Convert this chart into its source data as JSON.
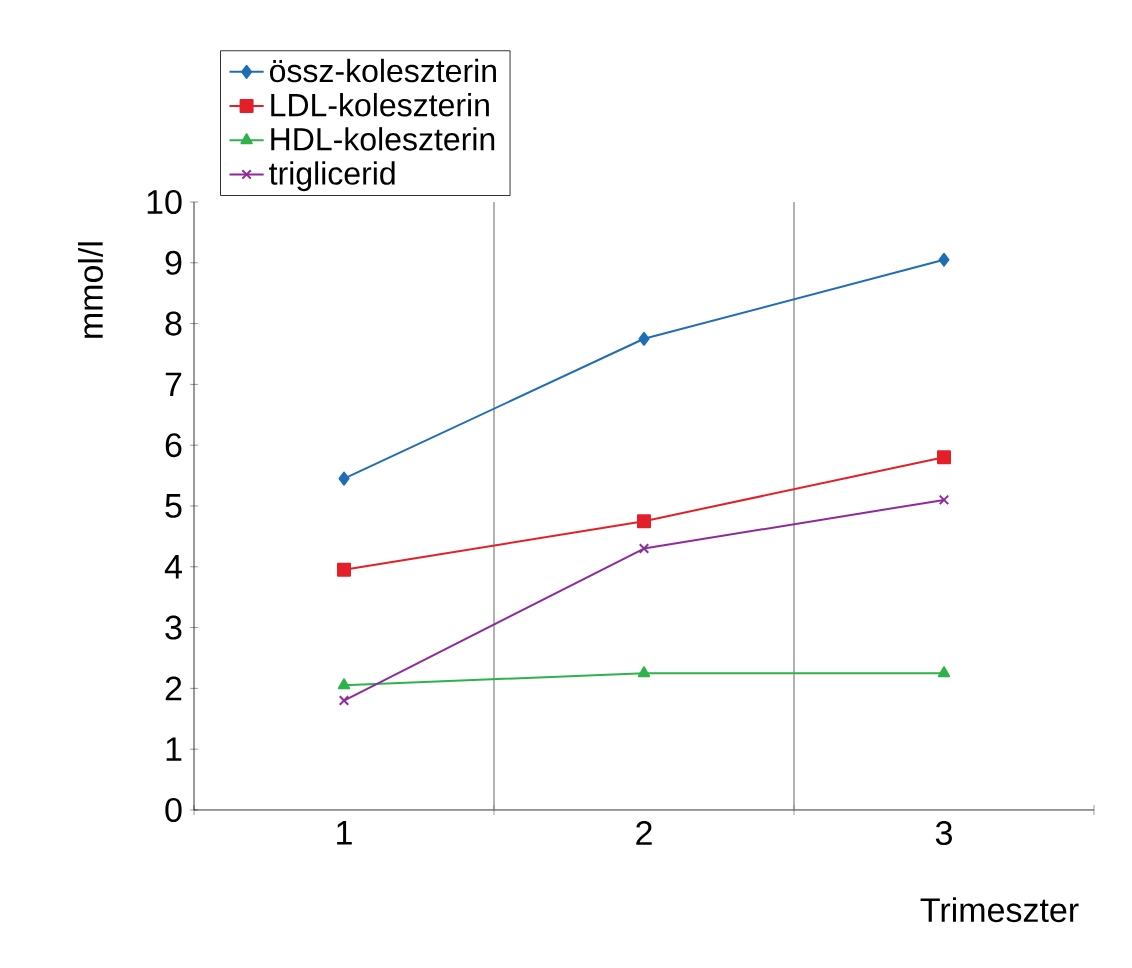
{
  "chart_data": {
    "type": "line",
    "xlabel": "Trimeszter",
    "ylabel": "mmol/l",
    "categories": [
      "1",
      "2",
      "3"
    ],
    "ylim": [
      0,
      10
    ],
    "yticks": [
      0,
      1,
      2,
      3,
      4,
      5,
      6,
      7,
      8,
      9,
      10
    ],
    "grid": "x",
    "legend": "top left",
    "series": [
      {
        "name": "össz-koleszterin",
        "color": "#1f6db5",
        "marker": "diamond",
        "values": [
          5.45,
          7.75,
          9.05
        ]
      },
      {
        "name": "LDL-koleszterin",
        "color": "#e3202a",
        "marker": "square",
        "values": [
          3.95,
          4.75,
          5.8
        ]
      },
      {
        "name": "HDL-koleszterin",
        "color": "#2db34a",
        "marker": "triangle",
        "values": [
          2.05,
          2.25,
          2.25
        ]
      },
      {
        "name": "triglicerid",
        "color": "#8e2a9c",
        "marker": "cross",
        "values": [
          1.8,
          4.3,
          5.1
        ]
      }
    ]
  }
}
